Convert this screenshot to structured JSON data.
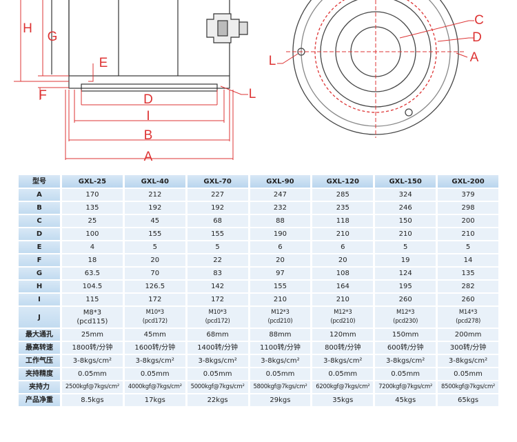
{
  "diagram": {
    "side_labels": [
      "H",
      "G",
      "E",
      "F",
      "D",
      "I",
      "B",
      "A",
      "L"
    ],
    "top_labels": [
      "C",
      "D",
      "A",
      "L"
    ]
  },
  "table": {
    "header": [
      "型号",
      "GXL-25",
      "GXL-40",
      "GXL-70",
      "GXL-90",
      "GXL-120",
      "GXL-150",
      "GXL-200"
    ],
    "rows": [
      [
        "A",
        "170",
        "212",
        "227",
        "247",
        "285",
        "324",
        "379"
      ],
      [
        "B",
        "135",
        "192",
        "192",
        "232",
        "235",
        "246",
        "298"
      ],
      [
        "C",
        "25",
        "45",
        "68",
        "88",
        "118",
        "150",
        "200"
      ],
      [
        "D",
        "100",
        "155",
        "155",
        "190",
        "210",
        "210",
        "210"
      ],
      [
        "E",
        "4",
        "5",
        "5",
        "6",
        "6",
        "5",
        "5"
      ],
      [
        "F",
        "18",
        "20",
        "22",
        "20",
        "20",
        "19",
        "14"
      ],
      [
        "G",
        "63.5",
        "70",
        "83",
        "97",
        "108",
        "124",
        "135"
      ],
      [
        "H",
        "104.5",
        "126.5",
        "142",
        "155",
        "164",
        "195",
        "282"
      ],
      [
        "I",
        "115",
        "172",
        "172",
        "210",
        "210",
        "260",
        "260"
      ],
      [
        "J",
        "M8*3\n(pcd115)",
        "M10*3\n(pcd172)",
        "M10*3\n(pcd172)",
        "M12*3\n(pcd210)",
        "M12*3\n(pcd210)",
        "M12*3\n(pcd230)",
        "M14*3\n(pcd278)"
      ],
      [
        "最大通孔",
        "25mm",
        "45mm",
        "68mm",
        "88mm",
        "120mm",
        "150mm",
        "200mm"
      ],
      [
        "最高转速",
        "1800转/分钟",
        "1600转/分钟",
        "1400转/分钟",
        "1100转/分钟",
        "800转/分钟",
        "600转/分钟",
        "300转/分钟"
      ],
      [
        "工作气压",
        "3-8kgs/cm²",
        "3-8kgs/cm²",
        "3-8kgs/cm²",
        "3-8kgs/cm²",
        "3-8kgs/cm²",
        "3-8kgs/cm²",
        "3-8kgs/cm²"
      ],
      [
        "夹持精度",
        "0.05mm",
        "0.05mm",
        "0.05mm",
        "0.05mm",
        "0.05mm",
        "0.05mm",
        "0.05mm"
      ],
      [
        "夹持力",
        "2500kgf@7kgs/cm²",
        "4000kgf@7kgs/cm²",
        "5000kgf@7kgs/cm²",
        "5800kgf@7kgs/cm²",
        "6200kgf@7kgs/cm²",
        "7200kgf@7kgs/cm²",
        "8500kgf@7kgs/cm²"
      ],
      [
        "产品净重",
        "8.5kgs",
        "17kgs",
        "22kgs",
        "29kgs",
        "35kgs",
        "45kgs",
        "65kgs"
      ]
    ]
  }
}
